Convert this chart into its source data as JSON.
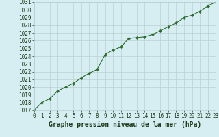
{
  "x": [
    0,
    1,
    2,
    3,
    4,
    5,
    6,
    7,
    8,
    9,
    10,
    11,
    12,
    13,
    14,
    15,
    16,
    17,
    18,
    19,
    20,
    21,
    22,
    23
  ],
  "y": [
    1017.0,
    1018.0,
    1018.5,
    1019.5,
    1020.0,
    1020.5,
    1021.2,
    1021.8,
    1022.3,
    1024.2,
    1024.8,
    1025.2,
    1026.3,
    1026.4,
    1026.5,
    1026.8,
    1027.3,
    1027.8,
    1028.3,
    1029.0,
    1029.3,
    1029.8,
    1030.5,
    1031.0
  ],
  "line_color": "#2d6a2d",
  "marker": "D",
  "marker_size": 2.2,
  "bg_color": "#d6eef2",
  "grid_color": "#b8d0d4",
  "xlabel": "Graphe pression niveau de la mer (hPa)",
  "xlabel_fontsize": 7.0,
  "xlabel_color": "#1a3a1a",
  "tick_color": "#1a3a1a",
  "tick_fontsize": 5.5,
  "ylim": [
    1017,
    1031
  ],
  "xlim": [
    0,
    23
  ],
  "yticks": [
    1017,
    1018,
    1019,
    1020,
    1021,
    1022,
    1023,
    1024,
    1025,
    1026,
    1027,
    1028,
    1029,
    1030,
    1031
  ],
  "xticks": [
    0,
    1,
    2,
    3,
    4,
    5,
    6,
    7,
    8,
    9,
    10,
    11,
    12,
    13,
    14,
    15,
    16,
    17,
    18,
    19,
    20,
    21,
    22,
    23
  ]
}
